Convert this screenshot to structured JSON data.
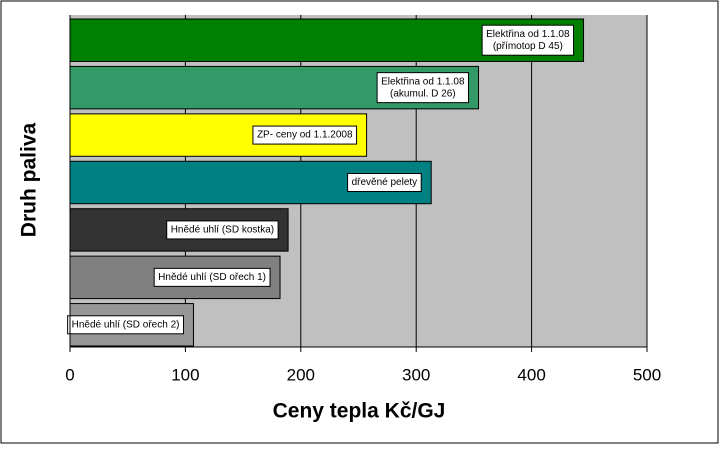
{
  "chart_data": {
    "type": "barh",
    "y_label": "Druh paliva",
    "x_label": "Ceny tepla Kč/GJ",
    "categories": [
      [
        "Elektřina od 1.1.08",
        "(přímotop D 45)"
      ],
      [
        "Elektřina od 1.1.08",
        "(akumul. D 26)"
      ],
      [
        "ZP- ceny od 1.1.2008"
      ],
      [
        "dřevěné pelety"
      ],
      [
        "Hnědé uhlí (SD kostka)"
      ],
      [
        "Hnědé uhlí (SD ořech 1)"
      ],
      [
        "Hnědé uhlí (SD ořech 2)"
      ]
    ],
    "values": [
      445,
      354,
      257,
      313,
      189,
      182,
      107
    ],
    "colors": [
      "#008000",
      "#339966",
      "#ffff00",
      "#008080",
      "#333333",
      "#808080",
      "#969696"
    ],
    "xlim": [
      0,
      500
    ],
    "xticks": [
      0,
      100,
      200,
      300,
      400,
      500
    ],
    "grid": true
  }
}
